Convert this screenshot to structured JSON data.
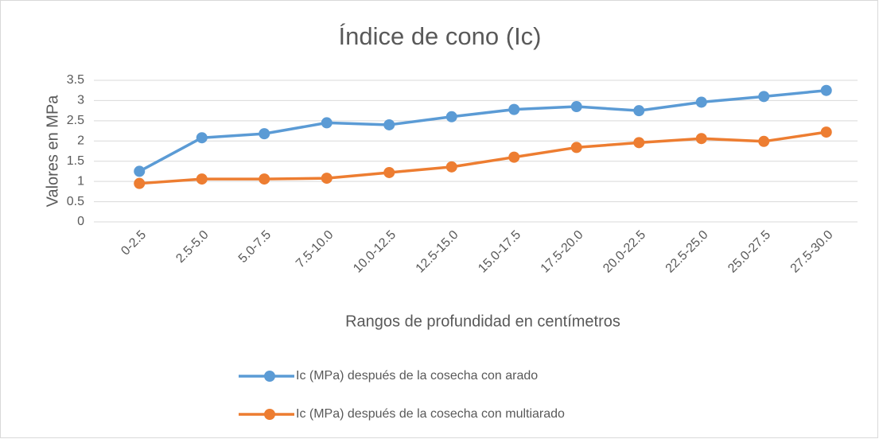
{
  "chart_data": {
    "type": "line",
    "title": "Índice de cono (Ic)",
    "x_label": "Rangos de profundidad en centímetros",
    "y_label": "Valores en MPa",
    "categories": [
      "0-2.5",
      "2.5-5.0",
      "5.0-7.5",
      "7.5-10.0",
      "10.0-12.5",
      "12.5-15.0",
      "15.0-17.5",
      "17.5-20.0",
      "20.0-22.5",
      "22.5-25.0",
      "25.0-27.5",
      "27.5-30.0"
    ],
    "series": [
      {
        "name": "Ic (MPa) después de la cosecha con arado",
        "color": "#5b9bd5",
        "values": [
          1.25,
          2.08,
          2.18,
          2.45,
          2.4,
          2.6,
          2.78,
          2.85,
          2.75,
          2.96,
          3.1,
          3.25
        ]
      },
      {
        "name": "Ic (MPa) después de la cosecha con multiarado",
        "color": "#ed7d31",
        "values": [
          0.95,
          1.06,
          1.06,
          1.08,
          1.22,
          1.36,
          1.6,
          1.84,
          1.96,
          2.06,
          1.99,
          2.22
        ]
      }
    ],
    "ylim": [
      0,
      3.5
    ],
    "yticks": [
      0,
      0.5,
      1,
      1.5,
      2,
      2.5,
      3,
      3.5
    ],
    "grid": true,
    "legend": "bottom"
  }
}
